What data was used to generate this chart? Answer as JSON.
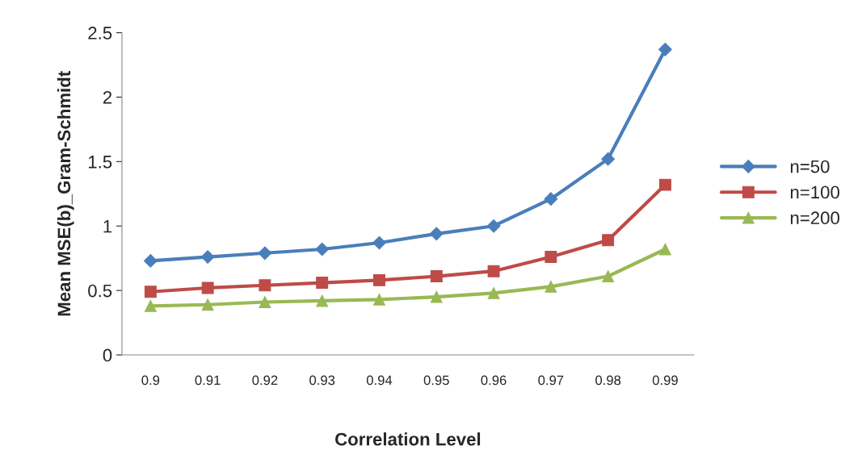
{
  "chart_data": {
    "type": "line",
    "xlabel": "Correlation Level",
    "ylabel": "Mean MSE(b)_Gram-Schmidt",
    "categories": [
      "0.9",
      "0.91",
      "0.92",
      "0.93",
      "0.94",
      "0.95",
      "0.96",
      "0.97",
      "0.98",
      "0.99"
    ],
    "series": [
      {
        "name": "n=50",
        "color": "#4a7ebb",
        "marker": "diamond",
        "values": [
          0.73,
          0.76,
          0.79,
          0.82,
          0.87,
          0.94,
          1.0,
          1.21,
          1.52,
          2.37
        ]
      },
      {
        "name": "n=100",
        "color": "#be4b48",
        "marker": "square",
        "values": [
          0.49,
          0.52,
          0.54,
          0.56,
          0.58,
          0.61,
          0.65,
          0.76,
          0.89,
          1.32
        ]
      },
      {
        "name": "n=200",
        "color": "#98b954",
        "marker": "triangle",
        "values": [
          0.38,
          0.39,
          0.41,
          0.42,
          0.43,
          0.45,
          0.48,
          0.53,
          0.61,
          0.82
        ]
      }
    ],
    "ylim": [
      0,
      2.5
    ],
    "yticks": [
      0,
      0.5,
      1,
      1.5,
      2,
      2.5
    ],
    "grid": false,
    "legend": "right"
  }
}
